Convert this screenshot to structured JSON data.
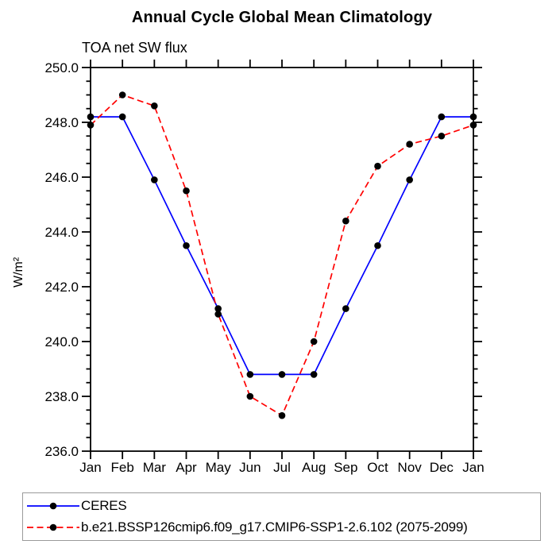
{
  "title": "Annual Cycle Global Mean Climatology",
  "subtitle": "TOA net SW flux",
  "y_axis_title": "W/m²",
  "colors": {
    "ceres_line": "#0000ff",
    "model_line": "#ff0000",
    "marker": "#000000",
    "axis": "#000000",
    "legend_border": "#9a9a9a"
  },
  "chart_data": {
    "type": "line",
    "title": "Annual Cycle Global Mean Climatology",
    "subtitle": "TOA net SW flux",
    "ylabel": "W/m²",
    "xlabel": "",
    "categories": [
      "Jan",
      "Feb",
      "Mar",
      "Apr",
      "May",
      "Jun",
      "Jul",
      "Aug",
      "Sep",
      "Oct",
      "Nov",
      "Dec",
      "Jan"
    ],
    "ylim": [
      236.0,
      250.0
    ],
    "y_major_tick_step": 2.0,
    "y_minor_tick_step": 0.5,
    "y_tick_labels": [
      "236.0",
      "238.0",
      "240.0",
      "242.0",
      "244.0",
      "246.0",
      "248.0",
      "250.0"
    ],
    "grid": false,
    "legend_position": "bottom-left-outside",
    "series": [
      {
        "name": "CERES",
        "line_style": "solid",
        "line_color": "#0000ff",
        "marker": "filled-circle",
        "marker_color": "#000000",
        "values": [
          248.2,
          248.2,
          245.9,
          243.5,
          241.2,
          238.8,
          238.8,
          238.8,
          241.2,
          243.5,
          245.9,
          248.2,
          248.2
        ]
      },
      {
        "name": "b.e21.BSSP126cmip6.f09_g17.CMIP6-SSP1-2.6.102 (2075-2099)",
        "line_style": "dashed",
        "line_color": "#ff0000",
        "marker": "filled-circle",
        "marker_color": "#000000",
        "values": [
          247.9,
          249.0,
          248.6,
          245.5,
          241.0,
          238.0,
          237.3,
          240.0,
          244.4,
          246.4,
          247.2,
          247.5,
          247.9
        ]
      }
    ]
  }
}
